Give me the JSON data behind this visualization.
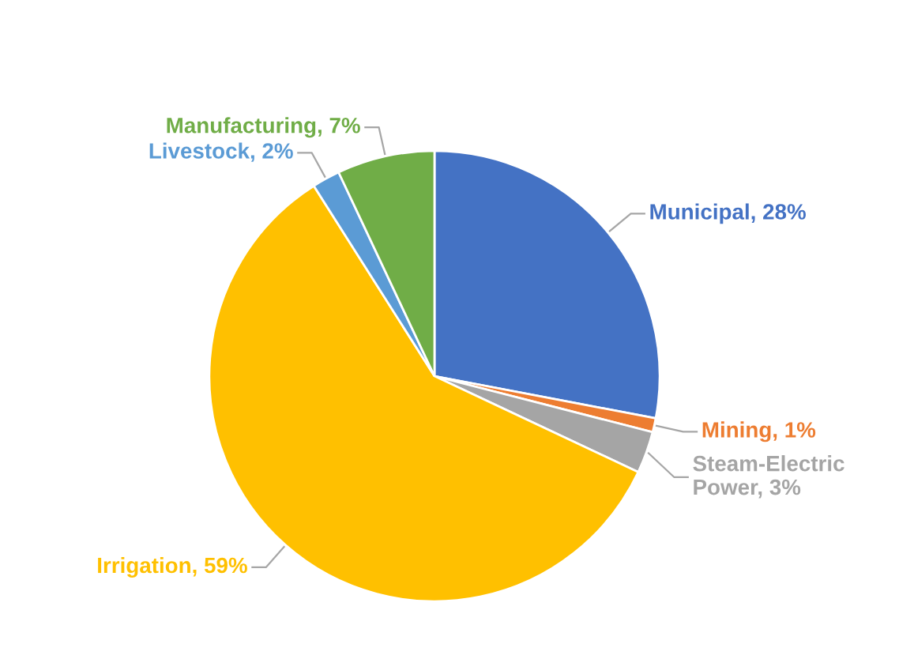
{
  "chart_data": {
    "type": "pie",
    "categories": [
      "Municipal",
      "Mining",
      "Steam-Electric Power",
      "Irrigation",
      "Livestock",
      "Manufacturing"
    ],
    "values": [
      28,
      1,
      3,
      59,
      2,
      7
    ],
    "value_labels": [
      "28%",
      "1%",
      "3%",
      "59%",
      "2%",
      "7%"
    ],
    "colors": [
      "#4472c4",
      "#ed7d31",
      "#a5a5a5",
      "#ffc000",
      "#5b9bd5",
      "#70ad47"
    ]
  }
}
